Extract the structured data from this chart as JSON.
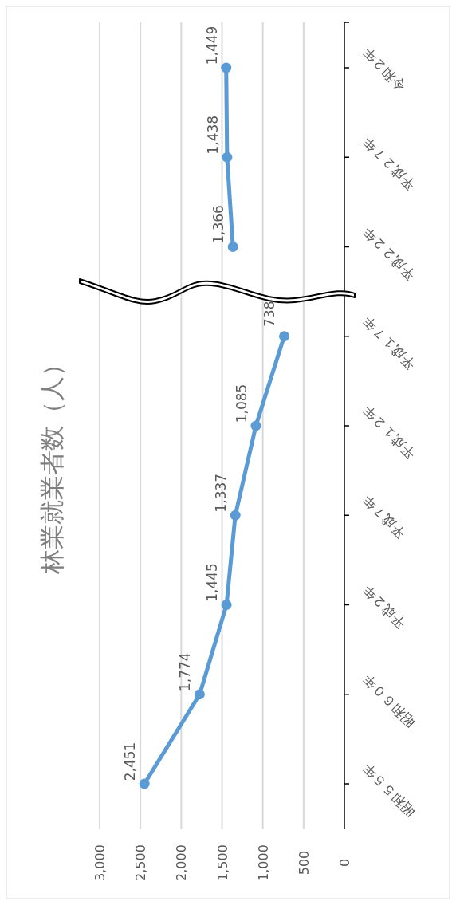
{
  "chart_data": {
    "type": "line",
    "orientation": "horizontal",
    "title": "林業就業者数（人）",
    "categories": [
      "令和２年",
      "平成２７年",
      "平成２２年",
      "平成１７年",
      "平成１２年",
      "平成７年",
      "平成２年",
      "昭和６０年",
      "昭和５５年"
    ],
    "series": [
      {
        "color": "#5b9bd5",
        "values": [
          1449,
          1438,
          1366,
          null,
          null,
          null,
          null,
          null,
          null
        ],
        "value_labels": [
          "1,449",
          "1,438",
          "1,366",
          null,
          null,
          null,
          null,
          null,
          null
        ]
      },
      {
        "color": "#5b9bd5",
        "values": [
          null,
          null,
          null,
          738,
          1085,
          1337,
          1445,
          1774,
          2451
        ],
        "value_labels": [
          null,
          null,
          null,
          "738",
          "1,085",
          "1,337",
          "1,445",
          "1,774",
          "2,451"
        ]
      }
    ],
    "xlim": [
      3000,
      0
    ],
    "xticks": [
      {
        "value": 3000,
        "label": "3,000"
      },
      {
        "value": 2500,
        "label": "2,500"
      },
      {
        "value": 2000,
        "label": "2,000"
      },
      {
        "value": 1500,
        "label": "1,500"
      },
      {
        "value": 1000,
        "label": "1,000"
      },
      500,
      0
    ],
    "grid": "x",
    "marker": "circle"
  }
}
